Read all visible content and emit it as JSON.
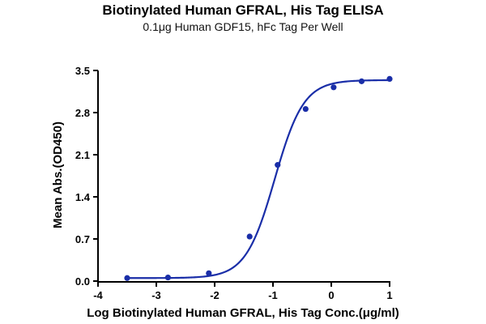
{
  "chart_data": {
    "type": "scatter",
    "title": "Biotinylated Human GFRAL, His Tag ELISA",
    "subtitle": "0.1μg Human GDF15, hFc Tag Per Well",
    "xlabel": "Log Biotinylated Human GFRAL, His Tag Conc.(μg/ml)",
    "ylabel": "Mean Abs.(OD450)",
    "xlim": [
      -4,
      1
    ],
    "ylim": [
      0,
      3.5
    ],
    "xticks": [
      -4,
      -3,
      -2,
      -1,
      0,
      1
    ],
    "yticks": [
      0.0,
      0.7,
      1.4,
      2.1,
      2.8,
      3.5
    ],
    "ytick_labels": [
      "0.0",
      "0.7",
      "1.4",
      "2.1",
      "2.8",
      "3.5"
    ],
    "grid": false,
    "colors": {
      "series": "#1a2ea8",
      "axis": "#000000"
    },
    "series": [
      {
        "points": [
          {
            "x": -3.5,
            "y": 0.05
          },
          {
            "x": -2.8,
            "y": 0.06
          },
          {
            "x": -2.1,
            "y": 0.13
          },
          {
            "x": -1.4,
            "y": 0.74
          },
          {
            "x": -0.92,
            "y": 1.93
          },
          {
            "x": -0.44,
            "y": 2.86
          },
          {
            "x": 0.04,
            "y": 3.22
          },
          {
            "x": 0.52,
            "y": 3.32
          },
          {
            "x": 1.0,
            "y": 3.36
          }
        ],
        "fit": {
          "model": "4PL",
          "bottom": 0.05,
          "top": 3.34,
          "log_ec50": -0.97,
          "hill": 1.75
        }
      }
    ]
  }
}
